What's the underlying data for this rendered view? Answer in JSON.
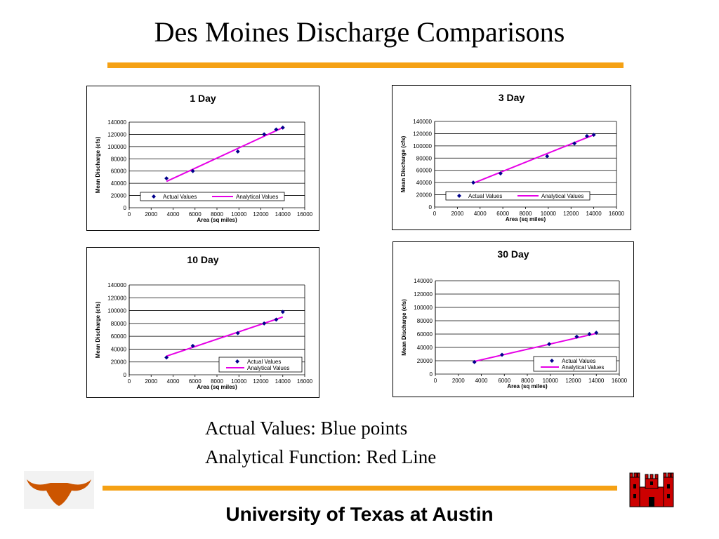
{
  "title": "Des Moines Discharge Comparisons",
  "notes": {
    "line1": "Actual Values: Blue points",
    "line2": "Analytical Function: Red Line"
  },
  "footer": "University of Texas at Austin",
  "logos": {
    "left": "longhorn-logo",
    "right": "castle-logo"
  },
  "colors": {
    "accent_rule": "#f5a114",
    "points": "#00008b",
    "line": "#e600e6",
    "logo_orange": "#cc5500",
    "castle_red": "#cc0000"
  },
  "chart_data": [
    {
      "type": "scatter",
      "title": "1 Day",
      "xlabel": "Area (sq miles)",
      "ylabel": "Mean Discharge (cfs)",
      "xlim": [
        0,
        16000
      ],
      "ylim": [
        0,
        140000
      ],
      "xticks": [
        0,
        2000,
        4000,
        6000,
        8000,
        10000,
        12000,
        14000,
        16000
      ],
      "yticks": [
        0,
        20000,
        40000,
        60000,
        80000,
        100000,
        120000,
        140000
      ],
      "grid": true,
      "legend": "inside-bottom-horizontal",
      "series": [
        {
          "name": "Actual Values",
          "kind": "points",
          "x": [
            3400,
            5800,
            9900,
            12300,
            13400,
            14000
          ],
          "y": [
            48000,
            60000,
            92000,
            120000,
            128000,
            131000
          ]
        },
        {
          "name": "Analytical Values",
          "kind": "line",
          "x": [
            3400,
            14000
          ],
          "y": [
            43000,
            131000
          ]
        }
      ]
    },
    {
      "type": "scatter",
      "title": "3 Day",
      "xlabel": "Area (sq miles)",
      "ylabel": "Mean Discharge (cfs)",
      "xlim": [
        0,
        16000
      ],
      "ylim": [
        0,
        140000
      ],
      "xticks": [
        0,
        2000,
        4000,
        6000,
        8000,
        10000,
        12000,
        14000,
        16000
      ],
      "yticks": [
        0,
        20000,
        40000,
        60000,
        80000,
        100000,
        120000,
        140000
      ],
      "grid": true,
      "legend": "inside-bottom-horizontal",
      "series": [
        {
          "name": "Actual Values",
          "kind": "points",
          "x": [
            3400,
            5800,
            9900,
            12300,
            13400,
            14000
          ],
          "y": [
            40000,
            55000,
            83000,
            104000,
            116000,
            118000
          ]
        },
        {
          "name": "Analytical Values",
          "kind": "line",
          "x": [
            3400,
            14000
          ],
          "y": [
            39000,
            118000
          ]
        }
      ]
    },
    {
      "type": "scatter",
      "title": "10 Day",
      "xlabel": "Area (sq miles)",
      "ylabel": "Mean Discharge (cfs)",
      "xlim": [
        0,
        16000
      ],
      "ylim": [
        0,
        140000
      ],
      "xticks": [
        0,
        2000,
        4000,
        6000,
        8000,
        10000,
        12000,
        14000,
        16000
      ],
      "yticks": [
        0,
        20000,
        40000,
        60000,
        80000,
        100000,
        120000,
        140000
      ],
      "grid": true,
      "legend": "inside-bottom-right-stacked",
      "series": [
        {
          "name": "Actual Values",
          "kind": "points",
          "x": [
            3400,
            5800,
            9900,
            12300,
            13400,
            14000
          ],
          "y": [
            27000,
            45000,
            65000,
            80000,
            86000,
            98000
          ]
        },
        {
          "name": "Analytical Values",
          "kind": "line",
          "x": [
            3400,
            14000
          ],
          "y": [
            29000,
            90000
          ]
        }
      ]
    },
    {
      "type": "scatter",
      "title": "30 Day",
      "xlabel": "Area (sq miles)",
      "ylabel": "Mean Discharge (cfs)",
      "xlim": [
        0,
        16000
      ],
      "ylim": [
        0,
        140000
      ],
      "xticks": [
        0,
        2000,
        4000,
        6000,
        8000,
        10000,
        12000,
        14000,
        16000
      ],
      "yticks": [
        0,
        20000,
        40000,
        60000,
        80000,
        100000,
        120000,
        140000
      ],
      "grid": true,
      "legend": "inside-bottom-right-stacked",
      "series": [
        {
          "name": "Actual Values",
          "kind": "points",
          "x": [
            3400,
            5800,
            9900,
            12300,
            13400,
            14000
          ],
          "y": [
            18000,
            29000,
            45000,
            56000,
            60000,
            62000
          ]
        },
        {
          "name": "Analytical Values",
          "kind": "line",
          "x": [
            3400,
            14000
          ],
          "y": [
            19000,
            61000
          ]
        }
      ]
    }
  ]
}
